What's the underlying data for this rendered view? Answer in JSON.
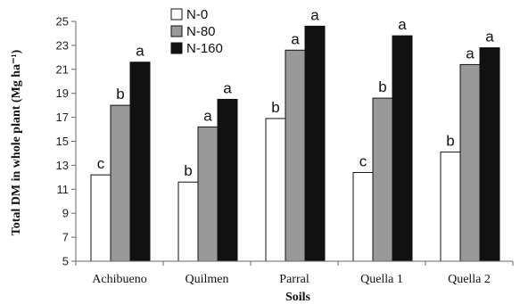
{
  "chart_data": {
    "type": "bar",
    "title": "",
    "xlabel": "Soils",
    "ylabel": "Total DM in whole plant (Mg ha⁻¹)",
    "ylim": [
      5,
      25
    ],
    "yticks": [
      5,
      7,
      9,
      11,
      13,
      15,
      17,
      19,
      21,
      23,
      25
    ],
    "grid": false,
    "legend_position": "top-left",
    "categories": [
      "Achibueno",
      "Quilmen",
      "Parral",
      "Quella 1",
      "Quella 2"
    ],
    "series": [
      {
        "name": "N-0",
        "color": "#ffffff",
        "values": [
          12.2,
          11.6,
          16.9,
          12.4,
          14.1
        ],
        "labels": [
          "c",
          "b",
          "b",
          "c",
          "b"
        ]
      },
      {
        "name": "N-80",
        "color": "#999999",
        "values": [
          18.0,
          16.2,
          22.6,
          18.6,
          21.4
        ],
        "labels": [
          "b",
          "a",
          "a",
          "b",
          "a"
        ]
      },
      {
        "name": "N-160",
        "color": "#111111",
        "values": [
          21.6,
          18.5,
          24.6,
          23.8,
          22.8
        ],
        "labels": [
          "a",
          "a",
          "a",
          "a",
          "a"
        ]
      }
    ]
  }
}
